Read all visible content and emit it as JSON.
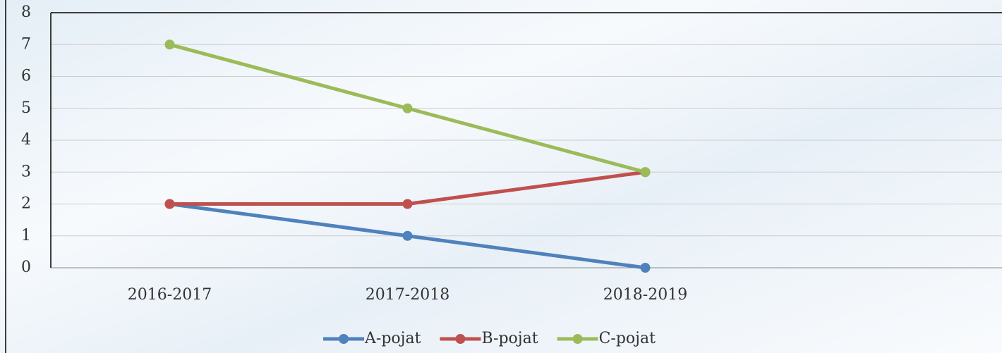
{
  "chart_data": {
    "type": "line",
    "categories": [
      "2016-2017",
      "2017-2018",
      "2018-2019",
      null
    ],
    "series": [
      {
        "name": "A-pojat",
        "color": "#4f81bd",
        "values": [
          2,
          1,
          0,
          null
        ]
      },
      {
        "name": "B-pojat",
        "color": "#c0504d",
        "values": [
          2,
          2,
          3,
          null
        ]
      },
      {
        "name": "C-pojat",
        "color": "#9bbb59",
        "values": [
          7,
          5,
          3,
          null
        ]
      }
    ],
    "ylim": [
      0,
      8
    ],
    "yticks": [
      0,
      1,
      2,
      3,
      4,
      5,
      6,
      7,
      8
    ],
    "grid": true,
    "legend": "bottom"
  }
}
